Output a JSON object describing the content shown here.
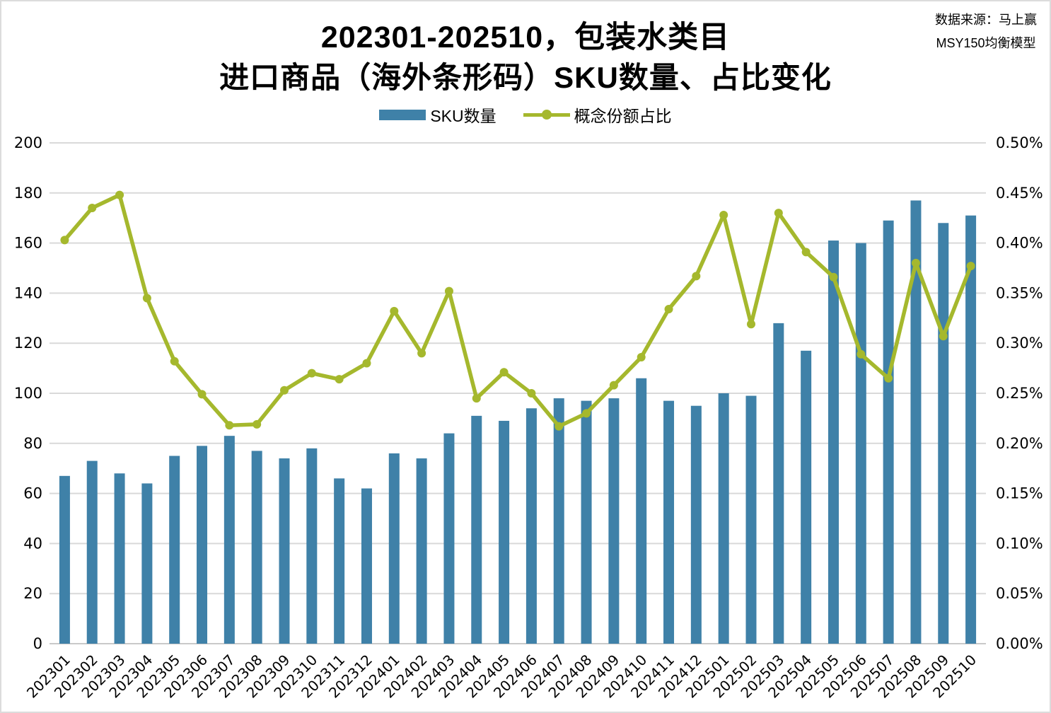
{
  "header": {
    "title_line1": "202301-202510，包装水类目",
    "title_line2": "进口商品（海外条形码）SKU数量、占比变化",
    "source_line1": "数据来源：马上赢",
    "source_line2": "MSY150均衡模型"
  },
  "legend": {
    "bar_label": "SKU数量",
    "line_label": "概念份额占比"
  },
  "colors": {
    "bar": "#3F81A8",
    "line": "#A5B82D",
    "grid": "#D9D9D9",
    "axis_line": "#C9C9C9",
    "text": "#000000",
    "background": "#FFFFFF",
    "border": "#DCDCDC"
  },
  "chart_data": {
    "type": "bar",
    "subtype": "combo-bar-line-dual-axis",
    "title": "202301-202510，包装水类目 进口商品（海外条形码）SKU数量、占比变化",
    "categories": [
      "202301",
      "202302",
      "202303",
      "202304",
      "202305",
      "202306",
      "202307",
      "202308",
      "202309",
      "202310",
      "202311",
      "202312",
      "202401",
      "202402",
      "202403",
      "202404",
      "202405",
      "202406",
      "202407",
      "202408",
      "202409",
      "202410",
      "202411",
      "202412",
      "202501",
      "202502",
      "202503",
      "202504",
      "202505",
      "202506",
      "202507",
      "202508",
      "202509",
      "202510"
    ],
    "series": [
      {
        "name": "SKU数量",
        "type": "bar",
        "axis": "left",
        "values": [
          67,
          73,
          68,
          64,
          75,
          79,
          83,
          77,
          74,
          78,
          66,
          62,
          76,
          74,
          84,
          91,
          89,
          94,
          98,
          97,
          98,
          106,
          97,
          95,
          100,
          99,
          128,
          117,
          161,
          160,
          169,
          177,
          168,
          171
        ]
      },
      {
        "name": "概念份额占比",
        "type": "line",
        "axis": "right",
        "values_percent": [
          0.403,
          0.435,
          0.448,
          0.345,
          0.282,
          0.249,
          0.218,
          0.219,
          0.253,
          0.27,
          0.264,
          0.28,
          0.332,
          0.29,
          0.352,
          0.245,
          0.271,
          0.25,
          0.217,
          0.23,
          0.258,
          0.286,
          0.334,
          0.367,
          0.428,
          0.319,
          0.43,
          0.391,
          0.366,
          0.289,
          0.265,
          0.38,
          0.307,
          0.377
        ]
      }
    ],
    "left_axis": {
      "min": 0,
      "max": 200,
      "step": 20,
      "ticks": [
        "0",
        "20",
        "40",
        "60",
        "80",
        "100",
        "120",
        "140",
        "160",
        "180",
        "200"
      ]
    },
    "right_axis": {
      "min_percent": 0.0,
      "max_percent": 0.5,
      "step_percent": 0.05,
      "ticks": [
        "0.00%",
        "0.05%",
        "0.10%",
        "0.15%",
        "0.20%",
        "0.25%",
        "0.30%",
        "0.35%",
        "0.40%",
        "0.45%",
        "0.50%"
      ]
    },
    "grid": "horizontal",
    "legend_position": "top-center",
    "x_label_rotation_deg": -45
  }
}
